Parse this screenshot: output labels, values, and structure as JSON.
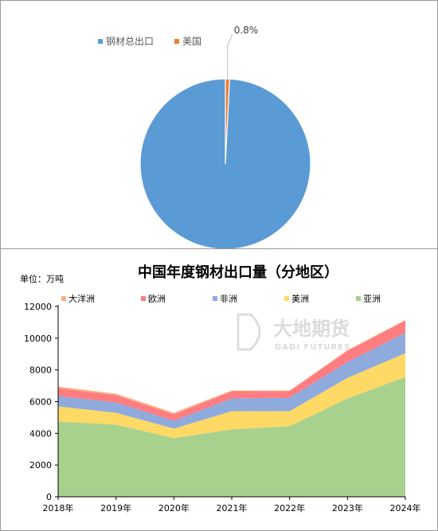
{
  "chart_data": [
    {
      "type": "pie",
      "title": "",
      "legend": [
        "钢材总出口",
        "美国"
      ],
      "legend_position": "top",
      "slices": [
        {
          "label": "钢材总出口",
          "value": 99.2,
          "color": "#5b9bd5"
        },
        {
          "label": "美国",
          "value": 0.8,
          "color": "#ed7d31"
        }
      ],
      "data_labels": [
        {
          "slice": "美国",
          "text": "0.8%"
        }
      ]
    },
    {
      "type": "area",
      "stacked": true,
      "title": "中国年度钢材出口量（分地区）",
      "unit_label": "单位：万吨",
      "categories": [
        "2018年",
        "2019年",
        "2020年",
        "2021年",
        "2022年",
        "2023年",
        "2024年"
      ],
      "ylim": [
        0,
        12000
      ],
      "yticks": [
        "0",
        "2000",
        "4000",
        "6000",
        "8000",
        "10000",
        "12000"
      ],
      "grid": false,
      "legend_position": "top",
      "series": [
        {
          "name": "亚洲",
          "color": "#a9d18e",
          "values": [
            4750,
            4550,
            3700,
            4250,
            4450,
            6200,
            7550
          ]
        },
        {
          "name": "美洲",
          "color": "#ffd966",
          "values": [
            950,
            750,
            600,
            1150,
            950,
            1300,
            1500
          ]
        },
        {
          "name": "非洲",
          "color": "#8faadc",
          "values": [
            650,
            650,
            500,
            800,
            850,
            1000,
            1300
          ]
        },
        {
          "name": "欧洲",
          "color": "#ff7c80",
          "values": [
            500,
            450,
            400,
            450,
            400,
            700,
            750
          ]
        },
        {
          "name": "大洋洲",
          "color": "#f4b183",
          "values": [
            100,
            100,
            100,
            50,
            50,
            50,
            50
          ]
        }
      ],
      "legend_order": [
        "大洋洲",
        "欧洲",
        "非洲",
        "美洲",
        "亚洲"
      ]
    }
  ],
  "watermark": {
    "brand_cn": "大地期货",
    "brand_en": "DADI FUTURES"
  }
}
